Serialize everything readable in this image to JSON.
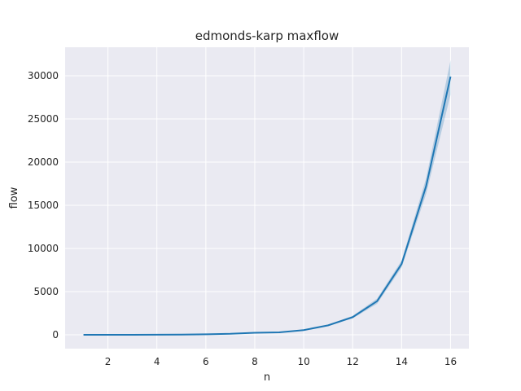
{
  "chart_data": {
    "type": "line",
    "title": "edmonds-karp maxflow",
    "xlabel": "n",
    "ylabel": "flow",
    "xlim": [
      0.25,
      16.75
    ],
    "ylim": [
      -1600,
      33300
    ],
    "xticks": [
      2,
      4,
      6,
      8,
      10,
      12,
      14,
      16
    ],
    "yticks": [
      0,
      5000,
      10000,
      15000,
      20000,
      25000,
      30000
    ],
    "grid": true,
    "legend": "none",
    "colors": {
      "line": "#1f77b4",
      "band": "#1f77b4",
      "background": "#eaeaf2",
      "grid": "#ffffff"
    },
    "series": [
      {
        "x": [
          1,
          2,
          3,
          4,
          5,
          6,
          7,
          8,
          9,
          10,
          11,
          12,
          13,
          14,
          15,
          16
        ],
        "values": [
          2,
          4,
          8,
          16,
          31,
          62,
          120,
          240,
          290,
          550,
          1100,
          2050,
          3900,
          8200,
          17200,
          29900
        ],
        "ci_low": [
          2,
          4,
          8,
          16,
          30,
          60,
          115,
          230,
          270,
          510,
          1020,
          1900,
          3600,
          7800,
          16300,
          27800
        ],
        "ci_high": [
          2,
          4,
          8,
          16,
          32,
          64,
          125,
          250,
          310,
          590,
          1180,
          2200,
          4200,
          8600,
          18100,
          31800
        ]
      }
    ]
  }
}
